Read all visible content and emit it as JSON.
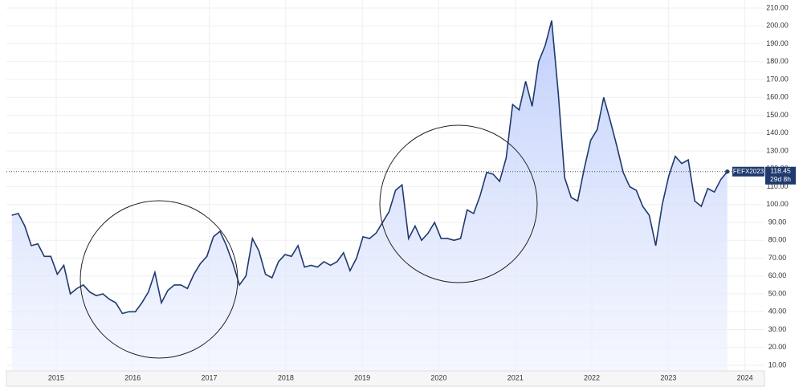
{
  "chart_data": {
    "type": "line",
    "x": [
      2014.42,
      2014.505,
      2014.59,
      2014.675,
      2014.76,
      2014.845,
      2014.93,
      2015.015,
      2015.1,
      2015.185,
      2015.27,
      2015.355,
      2015.44,
      2015.525,
      2015.61,
      2015.695,
      2015.78,
      2015.865,
      2015.95,
      2016.035,
      2016.12,
      2016.205,
      2016.29,
      2016.375,
      2016.46,
      2016.545,
      2016.63,
      2016.715,
      2016.8,
      2016.885,
      2016.97,
      2017.055,
      2017.14,
      2017.225,
      2017.31,
      2017.395,
      2017.48,
      2017.565,
      2017.65,
      2017.735,
      2017.82,
      2017.905,
      2017.99,
      2018.075,
      2018.16,
      2018.245,
      2018.33,
      2018.415,
      2018.5,
      2018.585,
      2018.67,
      2018.755,
      2018.84,
      2018.925,
      2019.01,
      2019.095,
      2019.18,
      2019.265,
      2019.35,
      2019.435,
      2019.52,
      2019.605,
      2019.69,
      2019.775,
      2019.86,
      2019.945,
      2020.03,
      2020.115,
      2020.2,
      2020.285,
      2020.37,
      2020.455,
      2020.54,
      2020.625,
      2020.71,
      2020.795,
      2020.88,
      2020.965,
      2021.05,
      2021.135,
      2021.22,
      2021.305,
      2021.39,
      2021.475,
      2021.56,
      2021.645,
      2021.73,
      2021.815,
      2021.9,
      2021.985,
      2022.07,
      2022.155,
      2022.24,
      2022.325,
      2022.41,
      2022.495,
      2022.58,
      2022.665,
      2022.75,
      2022.835,
      2022.92,
      2023.005,
      2023.09,
      2023.175,
      2023.26,
      2023.345,
      2023.43,
      2023.515,
      2023.6,
      2023.685,
      2023.77
    ],
    "series": [
      {
        "color": "#1f3a6e",
        "values": [
          94,
          95,
          88,
          77,
          78,
          71,
          71,
          61,
          66,
          50,
          53,
          55,
          51,
          49,
          50,
          47,
          45,
          39,
          40,
          40,
          45,
          51,
          62,
          45,
          52,
          55,
          55,
          53,
          61,
          67,
          71,
          82,
          85,
          77,
          67,
          55,
          60,
          81,
          74,
          61,
          59,
          68,
          72,
          71,
          77,
          65,
          66,
          65,
          68,
          66,
          68,
          73,
          63,
          70,
          82,
          81,
          84,
          90,
          96,
          108,
          111,
          81,
          88,
          80,
          84,
          90,
          81,
          81,
          80,
          81,
          97,
          95,
          105,
          118,
          117,
          113,
          126,
          156,
          153,
          169,
          155,
          180,
          189,
          203,
          163,
          115,
          104,
          102,
          120,
          136,
          142,
          160,
          147,
          133,
          118,
          110,
          108,
          99,
          94,
          77,
          100,
          116,
          127,
          123,
          125,
          102,
          99,
          109,
          107,
          114,
          118.45
        ]
      }
    ],
    "xlim": [
      2014.35,
      2024.3
    ],
    "xticks": [
      2015,
      2016,
      2017,
      2018,
      2019,
      2020,
      2021,
      2022,
      2023,
      2024
    ],
    "ylim": [
      7,
      212
    ],
    "yticks": [
      {
        "value": 10,
        "label": "10.00"
      },
      {
        "value": 20,
        "label": "20.00"
      },
      {
        "value": 30,
        "label": "30.00"
      },
      {
        "value": 40,
        "label": "40.00"
      },
      {
        "value": 50,
        "label": "50.00"
      },
      {
        "value": 60,
        "label": "60.00"
      },
      {
        "value": 70,
        "label": "70.00"
      },
      {
        "value": 80,
        "label": "80.00"
      },
      {
        "value": 90,
        "label": "90.00"
      },
      {
        "value": 100,
        "label": "100.00"
      },
      {
        "value": 110,
        "label": "110.00"
      },
      {
        "value": 120,
        "label": "120.00"
      },
      {
        "value": 130,
        "label": "130.00"
      },
      {
        "value": 140,
        "label": "140.00"
      },
      {
        "value": 150,
        "label": "150.00"
      },
      {
        "value": 160,
        "label": "160.00"
      },
      {
        "value": 170,
        "label": "170.00"
      },
      {
        "value": 180,
        "label": "180.00"
      },
      {
        "value": 190,
        "label": "190.00"
      },
      {
        "value": 200,
        "label": "200.00"
      },
      {
        "value": 210,
        "label": "210.00"
      }
    ],
    "grid": true,
    "symbol": "FEFX2023",
    "countdown": "29d 8h"
  }
}
